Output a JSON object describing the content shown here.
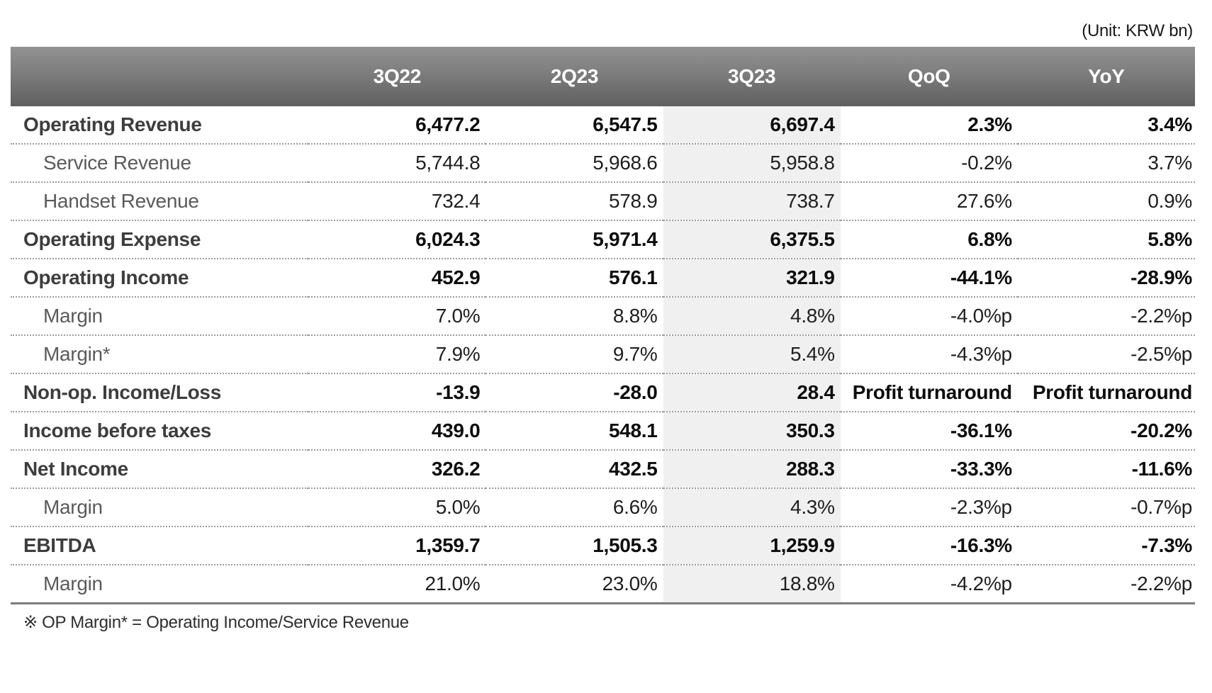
{
  "unit_label": "(Unit: KRW bn)",
  "footnote": "※ OP Margin* = Operating Income/Service Revenue",
  "colors": {
    "header_gradient_top": "#929292",
    "header_gradient_bottom": "#5f5f5f",
    "header_text": "#ffffff",
    "highlight_column_bg": "#f0f0f0",
    "dotted_separator": "#9c9c9c",
    "bottom_rule": "#7c7c7c",
    "main_label": "#3d3d3d",
    "main_value": "#0d0d0d",
    "sub_label": "#5a5a5a",
    "sub_value": "#1f1f1f"
  },
  "table": {
    "columns": [
      "",
      "3Q22",
      "2Q23",
      "3Q23",
      "QoQ",
      "YoY"
    ],
    "highlighted_column": "3Q23",
    "rows": [
      {
        "label": "Operating Revenue",
        "style": "main",
        "values": [
          "6,477.2",
          "6,547.5",
          "6,697.4",
          "2.3%",
          "3.4%"
        ]
      },
      {
        "label": "Service Revenue",
        "style": "sub",
        "values": [
          "5,744.8",
          "5,968.6",
          "5,958.8",
          "-0.2%",
          "3.7%"
        ]
      },
      {
        "label": "Handset Revenue",
        "style": "sub",
        "values": [
          "732.4",
          "578.9",
          "738.7",
          "27.6%",
          "0.9%"
        ]
      },
      {
        "label": "Operating Expense",
        "style": "main",
        "values": [
          "6,024.3",
          "5,971.4",
          "6,375.5",
          "6.8%",
          "5.8%"
        ]
      },
      {
        "label": "Operating Income",
        "style": "main",
        "values": [
          "452.9",
          "576.1",
          "321.9",
          "-44.1%",
          "-28.9%"
        ]
      },
      {
        "label": "Margin",
        "style": "sub",
        "values": [
          "7.0%",
          "8.8%",
          "4.8%",
          "-4.0%p",
          "-2.2%p"
        ]
      },
      {
        "label": "Margin*",
        "style": "sub",
        "values": [
          "7.9%",
          "9.7%",
          "5.4%",
          "-4.3%p",
          "-2.5%p"
        ]
      },
      {
        "label": "Non-op. Income/Loss",
        "style": "main",
        "values": [
          "-13.9",
          "-28.0",
          "28.4",
          "Profit turnaround",
          "Profit turnaround"
        ]
      },
      {
        "label": "Income before taxes",
        "style": "main",
        "values": [
          "439.0",
          "548.1",
          "350.3",
          "-36.1%",
          "-20.2%"
        ]
      },
      {
        "label": "Net Income",
        "style": "main",
        "values": [
          "326.2",
          "432.5",
          "288.3",
          "-33.3%",
          "-11.6%"
        ]
      },
      {
        "label": "Margin",
        "style": "sub",
        "values": [
          "5.0%",
          "6.6%",
          "4.3%",
          "-2.3%p",
          "-0.7%p"
        ]
      },
      {
        "label": "EBITDA",
        "style": "main",
        "values": [
          "1,359.7",
          "1,505.3",
          "1,259.9",
          "-16.3%",
          "-7.3%"
        ]
      },
      {
        "label": "Margin",
        "style": "sub",
        "values": [
          "21.0%",
          "23.0%",
          "18.8%",
          "-4.2%p",
          "-2.2%p"
        ]
      }
    ]
  }
}
